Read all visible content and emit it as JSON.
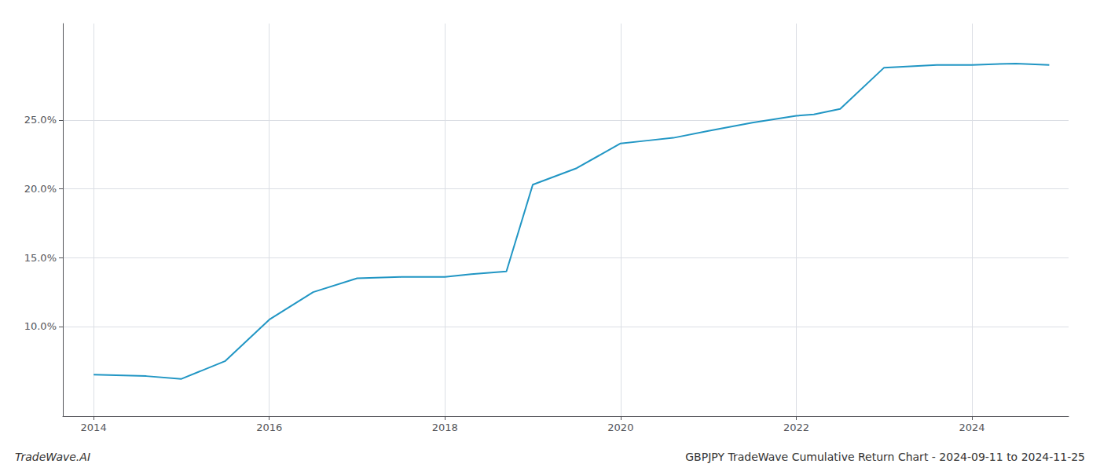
{
  "chart_data": {
    "type": "line",
    "title": "GBPJPY TradeWave Cumulative Return Chart - 2024-09-11 to 2024-11-25",
    "annotations": [
      "TradeWave.AI"
    ],
    "x": [
      2014.0,
      2014.6,
      2015.0,
      2015.5,
      2016.0,
      2016.5,
      2017.0,
      2017.5,
      2018.0,
      2018.3,
      2018.7,
      2019.0,
      2019.5,
      2020.0,
      2020.3,
      2020.6,
      2021.0,
      2021.5,
      2022.0,
      2022.2,
      2022.5,
      2023.0,
      2023.6,
      2024.0,
      2024.5,
      2024.88
    ],
    "values": [
      6.5,
      6.4,
      6.2,
      7.5,
      10.5,
      12.5,
      13.5,
      13.6,
      13.6,
      13.8,
      14.0,
      20.3,
      21.5,
      23.3,
      23.5,
      23.7,
      24.2,
      24.8,
      25.3,
      25.4,
      25.8,
      28.8,
      29.0,
      29.0,
      29.1,
      29.0
    ],
    "color": "#2196c4",
    "xlim": [
      2013.65,
      2025.1
    ],
    "ylim": [
      3.5,
      32.0
    ],
    "xticks": [
      2014,
      2016,
      2018,
      2020,
      2022,
      2024
    ],
    "yticks": [
      {
        "value": 10.0,
        "label": "10.0%"
      },
      {
        "value": 15.0,
        "label": "15.0%"
      },
      {
        "value": 20.0,
        "label": "20.0%"
      },
      {
        "value": 25.0,
        "label": "25.0%"
      }
    ],
    "grid": true
  }
}
